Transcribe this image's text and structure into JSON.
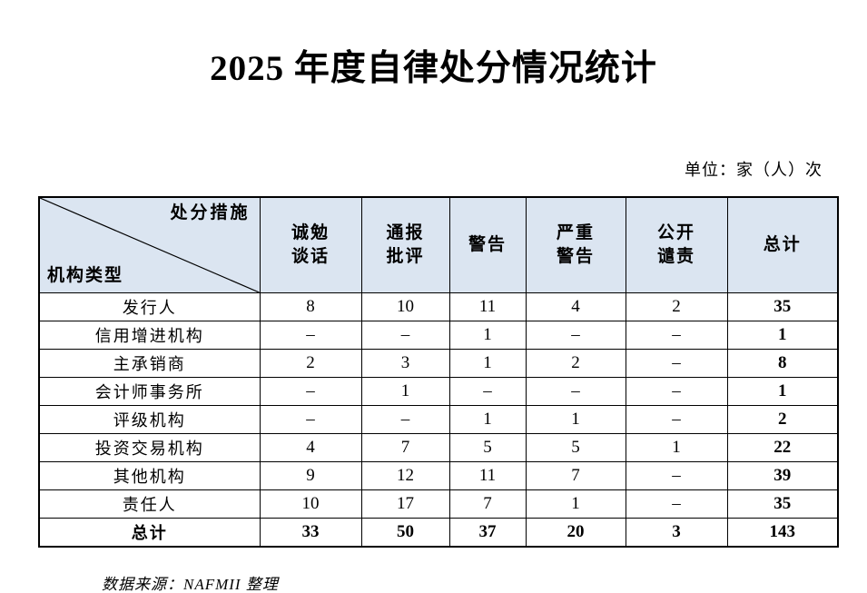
{
  "page": {
    "title": "2025 年度自律处分情况统计",
    "unit_label": "单位：家（人）次",
    "source_note": "数据来源：NAFMII 整理"
  },
  "table": {
    "corner": {
      "top_right": "处分措施",
      "bottom_left": "机构类型"
    },
    "columns": [
      "诚勉\n谈话",
      "通报\n批评",
      "警告",
      "严重\n警告",
      "公开\n谴责",
      "总计"
    ],
    "rows": [
      {
        "label": "发行人",
        "values": [
          "8",
          "10",
          "11",
          "4",
          "2",
          "35"
        ]
      },
      {
        "label": "信用增进机构",
        "values": [
          "–",
          "–",
          "1",
          "–",
          "–",
          "1"
        ]
      },
      {
        "label": "主承销商",
        "values": [
          "2",
          "3",
          "1",
          "2",
          "–",
          "8"
        ]
      },
      {
        "label": "会计师事务所",
        "values": [
          "–",
          "1",
          "–",
          "–",
          "–",
          "1"
        ]
      },
      {
        "label": "评级机构",
        "values": [
          "–",
          "–",
          "1",
          "1",
          "–",
          "2"
        ]
      },
      {
        "label": "投资交易机构",
        "values": [
          "4",
          "7",
          "5",
          "5",
          "1",
          "22"
        ]
      },
      {
        "label": "其他机构",
        "values": [
          "9",
          "12",
          "11",
          "7",
          "–",
          "39"
        ]
      },
      {
        "label": "责任人",
        "values": [
          "10",
          "17",
          "7",
          "1",
          "–",
          "35"
        ]
      }
    ],
    "total_row": {
      "label": "总计",
      "values": [
        "33",
        "50",
        "37",
        "20",
        "3",
        "143"
      ]
    }
  },
  "colors": {
    "header_bg": "#dbe5f1",
    "border": "#000000",
    "text": "#000000"
  }
}
